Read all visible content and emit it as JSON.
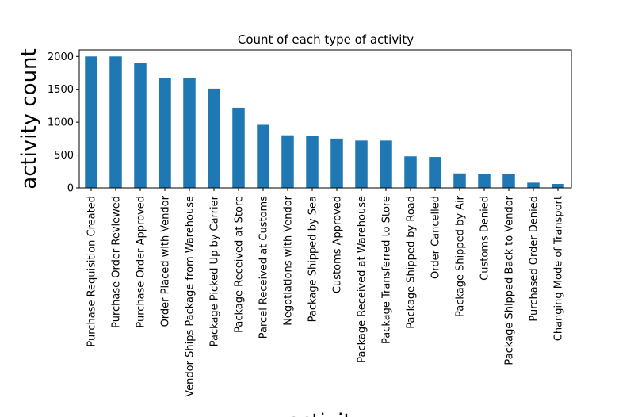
{
  "chart_data": {
    "type": "bar",
    "title": "Count of each type of activity",
    "xlabel": "activity",
    "ylabel": "activity count",
    "ylim": [
      0,
      2100
    ],
    "yticks": [
      0,
      500,
      1000,
      1500,
      2000
    ],
    "grid": false,
    "bar_color": "#1f77b4",
    "categories": [
      "Purchase Requisition Created",
      "Purchase Order Reviewed",
      "Purchase Order Approved",
      "Order Placed with Vendor",
      "Vendor Ships Package from Warehouse",
      "Package Picked Up by Carrier",
      "Package Received at Store",
      "Parcel Received at Customs",
      "Negotiations with Vendor",
      "Package Shipped by Sea",
      "Customs Approved",
      "Package Received at Warehouse",
      "Package Transferred to Store",
      "Package Shipped by Road",
      "Order Cancelled",
      "Package Shipped by Air",
      "Customs Denied",
      "Package Shipped Back to Vendor",
      "Purchased Order Denied",
      "Changing Mode of Transport"
    ],
    "values": [
      2000,
      2000,
      1900,
      1670,
      1670,
      1510,
      1220,
      960,
      800,
      790,
      750,
      720,
      720,
      480,
      470,
      220,
      210,
      210,
      80,
      60
    ]
  }
}
